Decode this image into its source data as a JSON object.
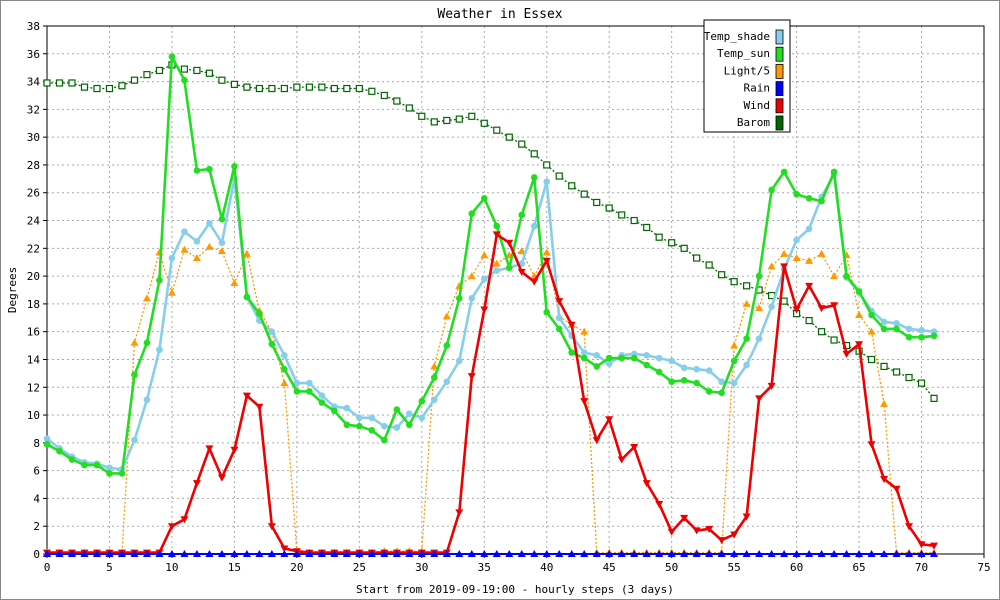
{
  "chart_data": {
    "type": "line",
    "title": "Weather in Essex",
    "xlabel": "Start from 2019-09-19:00 - hourly steps (3 days)",
    "ylabel": "Degrees",
    "xlim": [
      0,
      75
    ],
    "ylim": [
      0,
      38
    ],
    "x_ticks": [
      0,
      5,
      10,
      15,
      20,
      25,
      30,
      35,
      40,
      45,
      50,
      55,
      60,
      65,
      70,
      75
    ],
    "y_ticks": [
      0,
      2,
      4,
      6,
      8,
      10,
      12,
      14,
      16,
      18,
      20,
      22,
      24,
      26,
      28,
      30,
      32,
      34,
      36,
      38
    ],
    "grid": true,
    "legend": "top-right",
    "series": [
      {
        "name": "Temp_shade",
        "color": "#87ceeb",
        "marker": "circle",
        "values": [
          8.3,
          7.6,
          7.0,
          6.6,
          6.5,
          6.2,
          6.1,
          8.2,
          11.1,
          14.7,
          21.3,
          23.2,
          22.5,
          23.8,
          22.4,
          27.0,
          18.5,
          16.8,
          16.0,
          14.3,
          12.3,
          12.3,
          11.4,
          10.6,
          10.5,
          9.8,
          9.8,
          9.2,
          9.1,
          10.1,
          9.8,
          11.1,
          12.4,
          13.9,
          18.4,
          19.8,
          20.4,
          20.6,
          20.9,
          23.6,
          26.8,
          17.0,
          15.7,
          14.5,
          14.3,
          13.7,
          14.3,
          14.4,
          14.3,
          14.1,
          13.9,
          13.4,
          13.3,
          13.2,
          12.4,
          12.3,
          13.6,
          15.5,
          17.8,
          20.5,
          22.6,
          23.4,
          25.7,
          27.3,
          19.9,
          18.8,
          17.5,
          16.7,
          16.6,
          16.2,
          16.1,
          16.0
        ]
      },
      {
        "name": "Temp_sun",
        "color": "#22dd22",
        "marker": "circle",
        "values": [
          7.9,
          7.4,
          6.8,
          6.4,
          6.4,
          5.8,
          5.8,
          12.9,
          15.2,
          19.7,
          35.8,
          34.1,
          27.6,
          27.7,
          24.1,
          27.9,
          18.5,
          17.3,
          15.1,
          13.3,
          11.7,
          11.7,
          10.9,
          10.3,
          9.3,
          9.2,
          8.9,
          8.2,
          10.4,
          9.3,
          11.0,
          12.7,
          15.0,
          18.4,
          24.5,
          25.6,
          23.6,
          20.6,
          24.4,
          27.1,
          17.4,
          16.2,
          14.5,
          14.1,
          13.5,
          14.1,
          14.1,
          14.1,
          13.6,
          13.1,
          12.4,
          12.5,
          12.3,
          11.7,
          11.6,
          13.9,
          15.5,
          20.0,
          26.2,
          27.5,
          25.9,
          25.6,
          25.4,
          27.5,
          20.0,
          18.9,
          17.2,
          16.2,
          16.2,
          15.6,
          15.6,
          15.7
        ]
      },
      {
        "name": "Light/5",
        "color": "#ff9900",
        "marker": "triangle-up",
        "dashed": true,
        "values": [
          0.1,
          0.1,
          0.1,
          0.1,
          0.1,
          0.1,
          0.1,
          15.2,
          18.4,
          21.7,
          18.8,
          21.9,
          21.3,
          22.1,
          21.8,
          19.5,
          21.6,
          17.5,
          16.0,
          12.3,
          0.1,
          0.1,
          0.1,
          0.1,
          0.1,
          0.1,
          0.1,
          0.2,
          0.2,
          0.2,
          0.2,
          13.5,
          17.1,
          19.3,
          20.0,
          21.5,
          20.9,
          21.5,
          21.8,
          20.0,
          21.7,
          17.1,
          16.5,
          16.0,
          0.1,
          0.1,
          0.1,
          0.1,
          0.1,
          0.1,
          0.1,
          0.1,
          0.1,
          0.1,
          0.1,
          15.0,
          18.0,
          17.7,
          20.7,
          21.6,
          21.3,
          21.1,
          21.6,
          20.0,
          21.5,
          17.2,
          16.0,
          10.8,
          0.1,
          0.1,
          0.1,
          0.1
        ]
      },
      {
        "name": "Rain",
        "color": "#0000ff",
        "marker": "triangle-up",
        "values": [
          0,
          0,
          0,
          0,
          0,
          0,
          0,
          0,
          0,
          0,
          0,
          0,
          0,
          0,
          0,
          0,
          0,
          0,
          0,
          0,
          0,
          0,
          0,
          0,
          0,
          0,
          0,
          0,
          0,
          0,
          0,
          0,
          0,
          0,
          0,
          0,
          0,
          0,
          0,
          0,
          0,
          0,
          0,
          0,
          0,
          0,
          0,
          0,
          0,
          0,
          0,
          0,
          0,
          0,
          0,
          0,
          0,
          0,
          0,
          0,
          0,
          0,
          0,
          0,
          0,
          0,
          0,
          0,
          0,
          0,
          0,
          0
        ]
      },
      {
        "name": "Wind",
        "color": "#ee0000",
        "marker": "triangle-down",
        "values": [
          0.1,
          0.1,
          0.1,
          0.1,
          0.1,
          0.1,
          0.1,
          0.1,
          0.1,
          0.1,
          2.0,
          2.5,
          5.1,
          7.6,
          5.5,
          7.5,
          11.4,
          10.6,
          2.0,
          0.4,
          0.2,
          0.1,
          0.1,
          0.1,
          0.1,
          0.1,
          0.1,
          0.1,
          0.1,
          0.1,
          0.1,
          0.1,
          0.1,
          3.0,
          12.8,
          17.6,
          23.0,
          22.4,
          20.3,
          19.6,
          21.1,
          18.2,
          16.5,
          11.0,
          8.2,
          9.7,
          6.8,
          7.7,
          5.1,
          3.6,
          1.6,
          2.6,
          1.7,
          1.8,
          1.0,
          1.4,
          2.7,
          11.2,
          12.1,
          20.7,
          17.6,
          19.3,
          17.7,
          17.9,
          14.4,
          15.1,
          7.9,
          5.4,
          4.7,
          2.0,
          0.7,
          0.6
        ]
      },
      {
        "name": "Barom",
        "color": "#006600",
        "marker": "square",
        "dashed": true,
        "values": [
          33.9,
          33.9,
          33.9,
          33.6,
          33.5,
          33.5,
          33.7,
          34.1,
          34.5,
          34.8,
          35.2,
          34.9,
          34.8,
          34.6,
          34.1,
          33.8,
          33.6,
          33.5,
          33.5,
          33.5,
          33.6,
          33.6,
          33.6,
          33.5,
          33.5,
          33.5,
          33.3,
          33.0,
          32.6,
          32.1,
          31.5,
          31.1,
          31.2,
          31.3,
          31.5,
          31.0,
          30.5,
          30.0,
          29.5,
          28.8,
          28.0,
          27.2,
          26.5,
          25.9,
          25.3,
          24.9,
          24.4,
          24.0,
          23.5,
          22.8,
          22.4,
          22.0,
          21.3,
          20.8,
          20.1,
          19.6,
          19.3,
          19.0,
          18.6,
          18.2,
          17.3,
          16.8,
          16.0,
          15.4,
          15.0,
          14.6,
          14.0,
          13.5,
          13.1,
          12.7,
          12.3,
          11.2
        ]
      }
    ]
  }
}
